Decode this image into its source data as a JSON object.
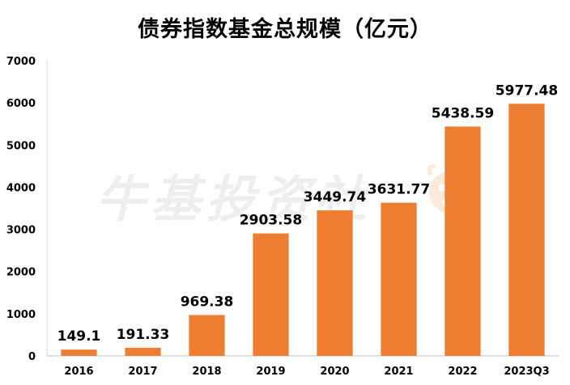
{
  "chart_data": {
    "type": "bar",
    "title": "债券指数基金总规模（亿元）",
    "xlabel": "",
    "ylabel": "",
    "categories": [
      "2016",
      "2017",
      "2018",
      "2019",
      "2020",
      "2021",
      "2022",
      "2023Q3"
    ],
    "values": [
      149.1,
      191.33,
      969.38,
      2903.58,
      3449.74,
      3631.77,
      5438.59,
      5977.48
    ],
    "value_labels": [
      "149.1",
      "191.33",
      "969.38",
      "2903.58",
      "3449.74",
      "3631.77",
      "5438.59",
      "5977.48"
    ],
    "ylim": [
      0,
      7000
    ],
    "yticks": [
      "0",
      "1000",
      "2000",
      "3000",
      "4000",
      "5000",
      "6000",
      "7000"
    ],
    "grid": false,
    "bar_color": "#ED7D31",
    "watermark": "牛基投资社"
  }
}
